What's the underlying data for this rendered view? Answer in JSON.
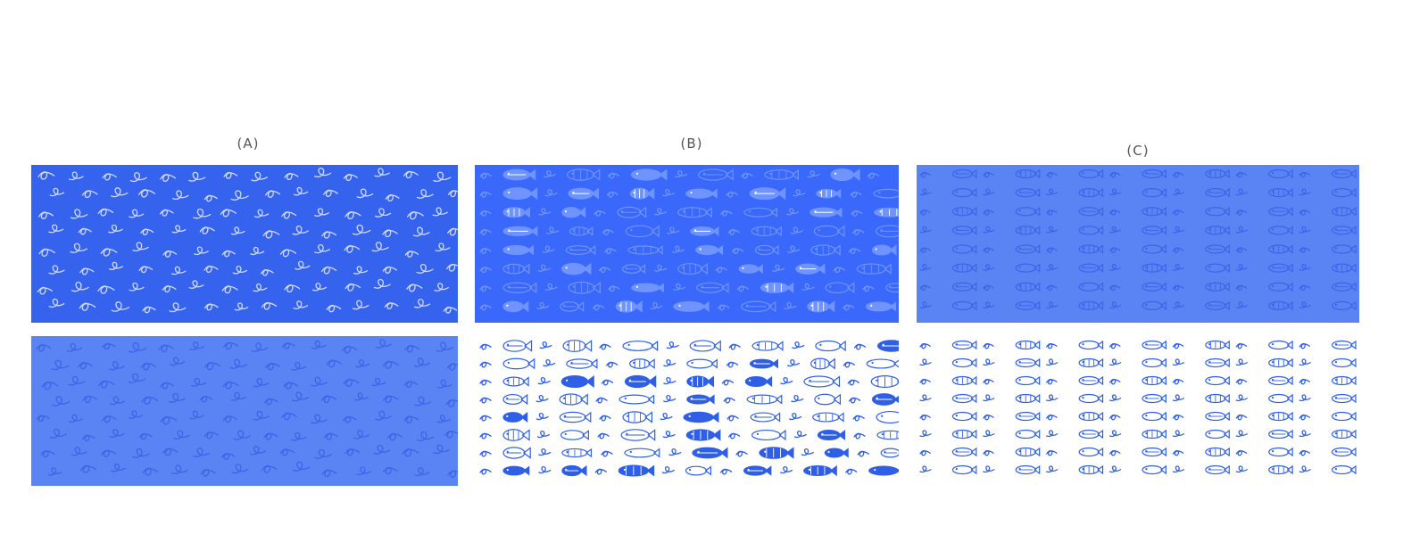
{
  "labels": {
    "a": "(A)",
    "b": "(B)",
    "c": "(C)"
  },
  "colors": {
    "blue_dark": "#3563ee",
    "blue_bright": "#3a68fb",
    "blue_soft": "#5a84f3",
    "ink_light_on_dark": "#cfd9ff",
    "ink_faint_on_dark": "#6f94ff",
    "ink_on_soft": "#3d64e8",
    "ink_on_white": "#2f5fe6",
    "white": "#ffffff"
  },
  "panels": [
    {
      "id": "a-top",
      "pattern": "squiggle",
      "background": "blue_dark",
      "ink": "ink_light_on_dark"
    },
    {
      "id": "a-bottom",
      "pattern": "squiggle",
      "background": "blue_soft",
      "ink": "ink_on_soft"
    },
    {
      "id": "b-top",
      "pattern": "fish",
      "background": "blue_bright",
      "ink": "ink_faint_on_dark"
    },
    {
      "id": "b-bottom",
      "pattern": "fish",
      "background": "white",
      "ink": "ink_on_white"
    },
    {
      "id": "c-top",
      "pattern": "fish-grid",
      "background": "blue_soft",
      "ink": "ink_on_soft"
    },
    {
      "id": "c-bottom",
      "pattern": "fish-grid",
      "background": "white",
      "ink": "ink_on_white"
    }
  ]
}
